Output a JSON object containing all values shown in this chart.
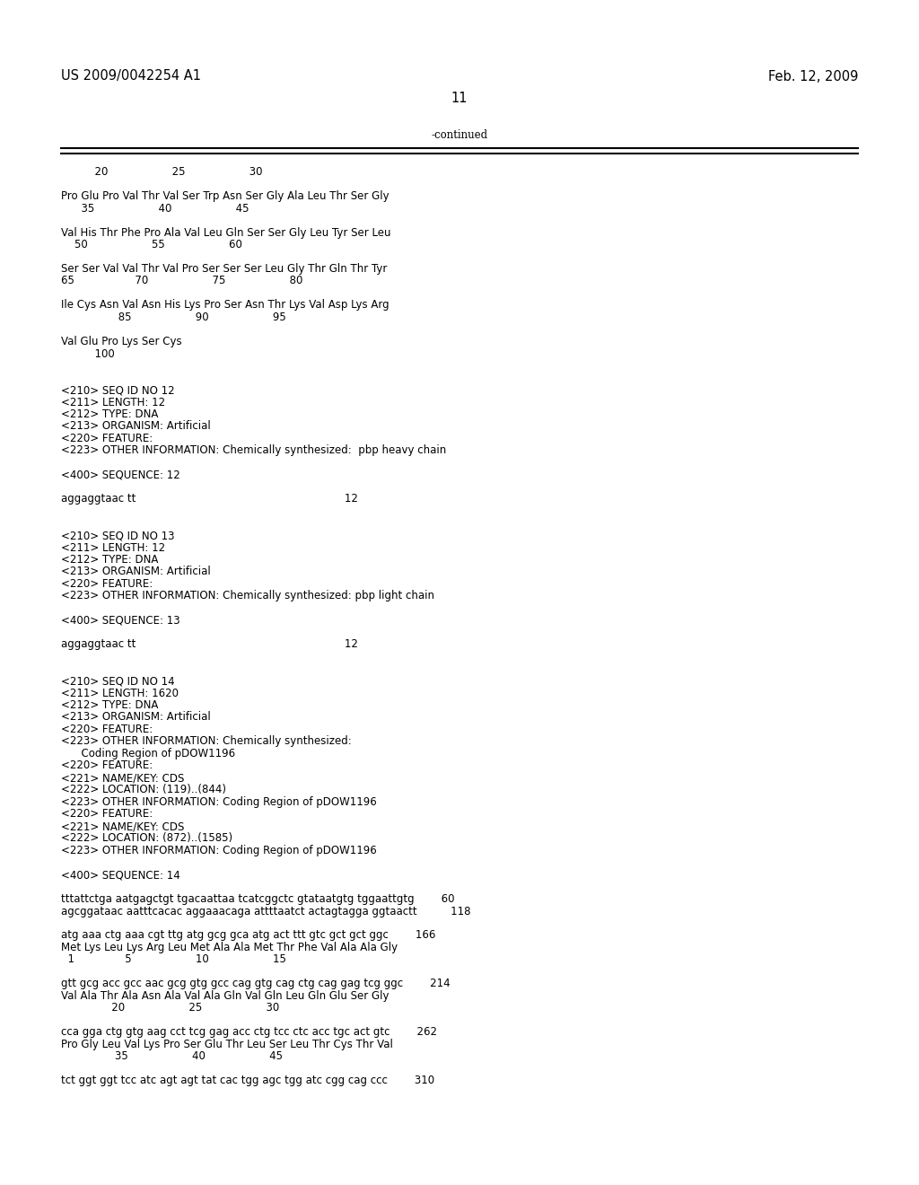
{
  "header_left": "US 2009/0042254 A1",
  "header_right": "Feb. 12, 2009",
  "page_number": "11",
  "continued_label": "-continued",
  "background_color": "#ffffff",
  "text_color": "#000000",
  "font_size_body": 8.5,
  "font_size_header": 10.5,
  "font_size_pagenum": 10.5,
  "content": [
    "          20                   25                   30",
    "",
    "Pro Glu Pro Val Thr Val Ser Trp Asn Ser Gly Ala Leu Thr Ser Gly",
    "      35                   40                   45",
    "",
    "Val His Thr Phe Pro Ala Val Leu Gln Ser Ser Gly Leu Tyr Ser Leu",
    "    50                   55                   60",
    "",
    "Ser Ser Val Val Thr Val Pro Ser Ser Ser Leu Gly Thr Gln Thr Tyr",
    "65                  70                   75                   80",
    "",
    "Ile Cys Asn Val Asn His Lys Pro Ser Asn Thr Lys Val Asp Lys Arg",
    "                 85                   90                   95",
    "",
    "Val Glu Pro Lys Ser Cys",
    "          100",
    "",
    "",
    "<210> SEQ ID NO 12",
    "<211> LENGTH: 12",
    "<212> TYPE: DNA",
    "<213> ORGANISM: Artificial",
    "<220> FEATURE:",
    "<223> OTHER INFORMATION: Chemically synthesized:  pbp heavy chain",
    "",
    "<400> SEQUENCE: 12",
    "",
    "aggaggtaac tt                                                              12",
    "",
    "",
    "<210> SEQ ID NO 13",
    "<211> LENGTH: 12",
    "<212> TYPE: DNA",
    "<213> ORGANISM: Artificial",
    "<220> FEATURE:",
    "<223> OTHER INFORMATION: Chemically synthesized: pbp light chain",
    "",
    "<400> SEQUENCE: 13",
    "",
    "aggaggtaac tt                                                              12",
    "",
    "",
    "<210> SEQ ID NO 14",
    "<211> LENGTH: 1620",
    "<212> TYPE: DNA",
    "<213> ORGANISM: Artificial",
    "<220> FEATURE:",
    "<223> OTHER INFORMATION: Chemically synthesized:",
    "      Coding Region of pDOW1196",
    "<220> FEATURE:",
    "<221> NAME/KEY: CDS",
    "<222> LOCATION: (119)..(844)",
    "<223> OTHER INFORMATION: Coding Region of pDOW1196",
    "<220> FEATURE:",
    "<221> NAME/KEY: CDS",
    "<222> LOCATION: (872)..(1585)",
    "<223> OTHER INFORMATION: Coding Region of pDOW1196",
    "",
    "<400> SEQUENCE: 14",
    "",
    "tttattctga aatgagctgt tgacaattaa tcatcggctc gtataatgtg tggaattgtg        60",
    "agcggataac aatttcacac aggaaacaga attttaatct actagtagga ggtaactt          118",
    "",
    "atg aaa ctg aaa cgt ttg atg gcg gca atg act ttt gtc gct gct ggc        166",
    "Met Lys Leu Lys Arg Leu Met Ala Ala Met Thr Phe Val Ala Ala Gly",
    "  1               5                   10                   15",
    "",
    "gtt gcg acc gcc aac gcg gtg gcc cag gtg cag ctg cag gag tcg ggc        214",
    "Val Ala Thr Ala Asn Ala Val Ala Gln Val Gln Leu Gln Glu Ser Gly",
    "               20                   25                   30",
    "",
    "cca gga ctg gtg aag cct tcg gag acc ctg tcc ctc acc tgc act gtc        262",
    "Pro Gly Leu Val Lys Pro Ser Glu Thr Leu Ser Leu Thr Cys Thr Val",
    "                35                   40                   45",
    "",
    "tct ggt ggt tcc atc agt agt tat cac tgg agc tgg atc cgg cag ccc        310"
  ]
}
